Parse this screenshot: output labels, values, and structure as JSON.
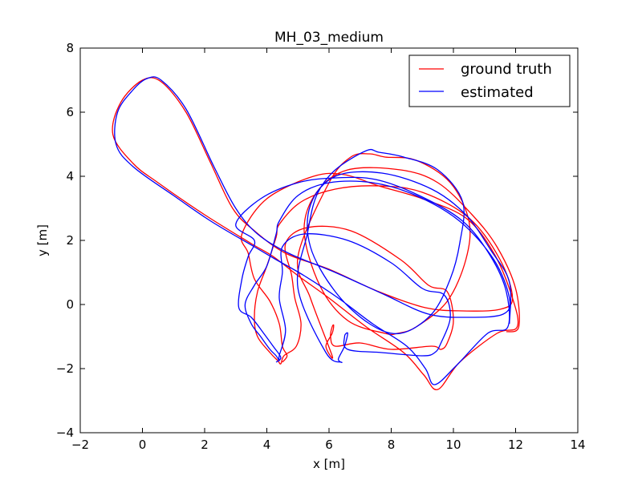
{
  "chart_data": {
    "type": "line",
    "title": "MH_03_medium",
    "xlabel": "x [m]",
    "ylabel": "y [m]",
    "xlim": [
      -2,
      14
    ],
    "ylim": [
      -4,
      8
    ],
    "xticks": [
      -2,
      0,
      2,
      4,
      6,
      8,
      10,
      12,
      14
    ],
    "yticks": [
      -4,
      -2,
      0,
      2,
      4,
      6,
      8
    ],
    "xtick_labels": [
      "−2",
      "0",
      "2",
      "4",
      "6",
      "8",
      "10",
      "12",
      "14"
    ],
    "ytick_labels": [
      "−4",
      "−2",
      "0",
      "2",
      "4",
      "6",
      "8"
    ],
    "grid": false,
    "legend_position": "top-right",
    "series": [
      {
        "name": "ground truth",
        "color": "#ff0000",
        "points": [
          [
            4.5,
            -1.8
          ],
          [
            4.65,
            -1.6
          ],
          [
            4.5,
            -1.3
          ],
          [
            4.4,
            -0.6
          ],
          [
            4.1,
            0.1
          ],
          [
            3.6,
            0.8
          ],
          [
            3.4,
            1.6
          ],
          [
            3.2,
            2.2
          ],
          [
            4.0,
            3.3
          ],
          [
            5.5,
            4.0
          ],
          [
            6.5,
            4.05
          ],
          [
            7.6,
            3.7
          ],
          [
            9.0,
            3.3
          ],
          [
            10.4,
            2.7
          ],
          [
            11.3,
            1.6
          ],
          [
            11.9,
            0.2
          ],
          [
            12.05,
            -0.7
          ],
          [
            11.4,
            -0.9
          ],
          [
            10.2,
            -1.8
          ],
          [
            9.5,
            -2.65
          ],
          [
            9.05,
            -2.2
          ],
          [
            8.4,
            -1.5
          ],
          [
            7.2,
            -0.7
          ],
          [
            6.0,
            0.2
          ],
          [
            5.0,
            0.9
          ],
          [
            4.2,
            1.5
          ],
          [
            3.5,
            1.9
          ],
          [
            2.0,
            2.8
          ],
          [
            0.5,
            3.8
          ],
          [
            -0.3,
            4.4
          ],
          [
            -0.95,
            5.3
          ],
          [
            -0.7,
            6.3
          ],
          [
            0.0,
            7.0
          ],
          [
            0.6,
            6.95
          ],
          [
            1.4,
            6.0
          ],
          [
            2.2,
            4.4
          ],
          [
            2.9,
            3.0
          ],
          [
            3.6,
            2.3
          ],
          [
            4.6,
            1.6
          ],
          [
            6.0,
            1.1
          ],
          [
            7.6,
            0.4
          ],
          [
            9.1,
            -0.1
          ],
          [
            10.3,
            -0.2
          ],
          [
            11.5,
            -0.15
          ],
          [
            11.9,
            0.2
          ],
          [
            11.5,
            1.4
          ],
          [
            10.5,
            2.7
          ],
          [
            9.0,
            3.5
          ],
          [
            7.6,
            3.7
          ],
          [
            6.2,
            3.6
          ],
          [
            5.1,
            3.2
          ],
          [
            4.4,
            2.5
          ],
          [
            4.3,
            2.1
          ],
          [
            4.0,
            1.2
          ],
          [
            3.7,
            0.4
          ],
          [
            3.6,
            -0.4
          ],
          [
            3.7,
            -1.0
          ],
          [
            4.1,
            -1.5
          ],
          [
            4.35,
            -1.75
          ],
          [
            4.45,
            -1.85
          ],
          [
            4.55,
            -1.6
          ],
          [
            4.95,
            -1.3
          ],
          [
            5.1,
            -0.6
          ],
          [
            4.9,
            0.2
          ],
          [
            4.8,
            0.9
          ],
          [
            4.6,
            1.9
          ],
          [
            5.3,
            2.4
          ],
          [
            6.7,
            2.3
          ],
          [
            8.3,
            1.4
          ],
          [
            9.2,
            0.6
          ],
          [
            9.8,
            0.4
          ],
          [
            10.0,
            -0.5
          ],
          [
            9.8,
            -1.2
          ],
          [
            9.6,
            -1.4
          ],
          [
            9.3,
            -1.3
          ],
          [
            8.0,
            -1.4
          ],
          [
            7.0,
            -1.2
          ],
          [
            6.2,
            -1.3
          ],
          [
            6.05,
            -1.0
          ],
          [
            6.1,
            -0.7
          ],
          [
            6.15,
            -0.65
          ],
          [
            6.1,
            -0.9
          ],
          [
            5.9,
            -1.3
          ],
          [
            6.1,
            -1.6
          ],
          [
            5.4,
            0.2
          ],
          [
            5.0,
            1.5
          ],
          [
            6.0,
            3.8
          ],
          [
            6.7,
            4.6
          ],
          [
            7.3,
            4.7
          ],
          [
            7.8,
            4.6
          ],
          [
            8.8,
            4.5
          ],
          [
            9.9,
            3.8
          ],
          [
            10.5,
            2.6
          ],
          [
            10.4,
            1.4
          ],
          [
            9.8,
            0.1
          ],
          [
            8.8,
            -0.7
          ],
          [
            8.2,
            -0.9
          ],
          [
            7.8,
            -0.9
          ],
          [
            6.6,
            -0.5
          ],
          [
            5.7,
            0.6
          ],
          [
            5.2,
            2.3
          ],
          [
            5.6,
            3.5
          ],
          [
            6.6,
            4.2
          ],
          [
            8.3,
            4.2
          ],
          [
            9.5,
            3.8
          ],
          [
            10.6,
            2.8
          ],
          [
            11.4,
            1.8
          ],
          [
            12.0,
            0.5
          ],
          [
            12.1,
            -0.7
          ],
          [
            11.7,
            -0.85
          ]
        ]
      },
      {
        "name": "estimated",
        "color": "#0000ff",
        "points": [
          [
            4.3,
            -1.8
          ],
          [
            4.45,
            -1.65
          ],
          [
            4.2,
            -1.3
          ],
          [
            3.9,
            -0.9
          ],
          [
            3.5,
            -0.4
          ],
          [
            3.1,
            -0.1
          ],
          [
            3.2,
            0.8
          ],
          [
            3.4,
            1.5
          ],
          [
            3.6,
            2.0
          ],
          [
            3.0,
            2.5
          ],
          [
            3.8,
            3.3
          ],
          [
            5.0,
            3.8
          ],
          [
            6.2,
            3.95
          ],
          [
            7.5,
            3.9
          ],
          [
            8.9,
            3.4
          ],
          [
            10.3,
            2.6
          ],
          [
            11.2,
            1.5
          ],
          [
            11.7,
            0.4
          ],
          [
            11.75,
            -0.7
          ],
          [
            11.1,
            -0.9
          ],
          [
            10.1,
            -1.9
          ],
          [
            9.4,
            -2.5
          ],
          [
            9.1,
            -2.0
          ],
          [
            8.5,
            -1.3
          ],
          [
            7.4,
            -0.6
          ],
          [
            6.3,
            0.2
          ],
          [
            5.2,
            0.9
          ],
          [
            4.3,
            1.4
          ],
          [
            3.6,
            1.8
          ],
          [
            2.2,
            2.6
          ],
          [
            1.0,
            3.4
          ],
          [
            -0.3,
            4.3
          ],
          [
            -0.85,
            5.0
          ],
          [
            -0.8,
            6.0
          ],
          [
            -0.3,
            6.7
          ],
          [
            0.15,
            7.05
          ],
          [
            0.6,
            7.0
          ],
          [
            1.4,
            6.1
          ],
          [
            2.3,
            4.3
          ],
          [
            3.0,
            3.0
          ],
          [
            3.7,
            2.2
          ],
          [
            4.7,
            1.6
          ],
          [
            6.2,
            1.0
          ],
          [
            7.8,
            0.3
          ],
          [
            9.2,
            -0.3
          ],
          [
            10.5,
            -0.4
          ],
          [
            11.6,
            -0.3
          ],
          [
            11.8,
            0.2
          ],
          [
            11.3,
            1.4
          ],
          [
            10.2,
            2.6
          ],
          [
            8.8,
            3.4
          ],
          [
            7.4,
            3.8
          ],
          [
            6.0,
            3.8
          ],
          [
            5.0,
            3.4
          ],
          [
            4.4,
            2.6
          ],
          [
            4.3,
            2.2
          ],
          [
            4.0,
            1.2
          ],
          [
            3.6,
            0.6
          ],
          [
            3.3,
            0.0
          ],
          [
            3.5,
            -0.6
          ],
          [
            3.8,
            -1.0
          ],
          [
            4.1,
            -1.4
          ],
          [
            4.3,
            -1.6
          ],
          [
            4.4,
            -1.75
          ],
          [
            4.4,
            -1.6
          ],
          [
            4.6,
            -0.8
          ],
          [
            4.4,
            0.2
          ],
          [
            4.5,
            1.0
          ],
          [
            4.5,
            1.8
          ],
          [
            5.2,
            2.2
          ],
          [
            6.6,
            2.0
          ],
          [
            8.0,
            1.3
          ],
          [
            9.0,
            0.5
          ],
          [
            9.7,
            0.3
          ],
          [
            9.9,
            -0.4
          ],
          [
            9.6,
            -1.2
          ],
          [
            9.4,
            -1.5
          ],
          [
            9.0,
            -1.6
          ],
          [
            7.7,
            -1.5
          ],
          [
            6.6,
            -1.4
          ],
          [
            6.5,
            -1.0
          ],
          [
            6.6,
            -0.9
          ],
          [
            6.5,
            -1.3
          ],
          [
            6.3,
            -1.7
          ],
          [
            6.4,
            -1.8
          ],
          [
            5.9,
            -1.5
          ],
          [
            5.0,
            0.5
          ],
          [
            5.3,
            2.2
          ],
          [
            5.6,
            3.4
          ],
          [
            6.2,
            4.2
          ],
          [
            7.2,
            4.8
          ],
          [
            7.6,
            4.75
          ],
          [
            8.4,
            4.6
          ],
          [
            9.5,
            4.2
          ],
          [
            10.3,
            3.2
          ],
          [
            10.2,
            1.9
          ],
          [
            9.9,
            0.8
          ],
          [
            9.3,
            -0.3
          ],
          [
            8.3,
            -0.9
          ],
          [
            7.3,
            -0.6
          ],
          [
            6.2,
            0.4
          ],
          [
            5.4,
            1.8
          ],
          [
            5.4,
            3.1
          ],
          [
            6.2,
            4.0
          ],
          [
            7.7,
            4.1
          ],
          [
            9.3,
            3.6
          ],
          [
            10.4,
            2.8
          ],
          [
            11.2,
            1.7
          ],
          [
            11.8,
            0.7
          ],
          [
            11.8,
            -0.6
          ]
        ]
      }
    ]
  }
}
